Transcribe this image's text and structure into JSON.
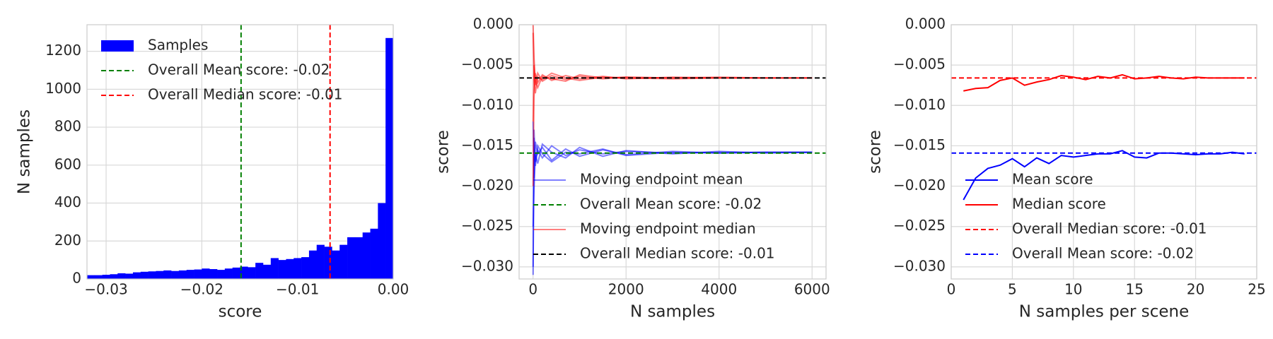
{
  "chart_data": [
    {
      "type": "histogram",
      "xlabel": "score",
      "ylabel": "N samples",
      "name": "Samples",
      "color": "#0000ff",
      "bins": [
        -0.032,
        -0.0312,
        -0.0304,
        -0.0296,
        -0.0288,
        -0.028,
        -0.0272,
        -0.0264,
        -0.0256,
        -0.0248,
        -0.024,
        -0.0232,
        -0.0224,
        -0.0216,
        -0.0208,
        -0.02,
        -0.0192,
        -0.0184,
        -0.0176,
        -0.0168,
        -0.016,
        -0.0152,
        -0.0144,
        -0.0136,
        -0.0128,
        -0.012,
        -0.0112,
        -0.0104,
        -0.0096,
        -0.0088,
        -0.008,
        -0.0072,
        -0.0064,
        -0.0056,
        -0.0048,
        -0.004,
        -0.0032,
        -0.0024,
        -0.0016,
        -0.0008,
        0
      ],
      "counts": [
        20,
        20,
        22,
        25,
        30,
        28,
        35,
        38,
        40,
        42,
        45,
        42,
        45,
        48,
        50,
        55,
        52,
        48,
        55,
        60,
        65,
        62,
        85,
        75,
        110,
        100,
        105,
        110,
        115,
        150,
        180,
        170,
        150,
        180,
        220,
        220,
        245,
        265,
        400,
        1270
      ],
      "vlines": [
        {
          "name": "Overall Mean score: -0.02",
          "color": "#008000",
          "x": -0.0159
        },
        {
          "name": "Overall Median score: -0.01",
          "color": "#ff0000",
          "x": -0.0066
        }
      ],
      "xlim": [
        -0.032,
        0
      ],
      "xticks": [
        {
          "value": -0.03,
          "label": "−0.03"
        },
        {
          "value": -0.02,
          "label": "−0.02"
        },
        {
          "value": -0.01,
          "label": "−0.01"
        },
        {
          "value": 0,
          "label": "0.00"
        }
      ],
      "ylim": [
        0,
        1340
      ],
      "yticks": [
        0,
        200,
        400,
        600,
        800,
        1000,
        1200
      ],
      "grid": true,
      "legend": "upper left"
    },
    {
      "type": "line",
      "xlabel": "N samples",
      "ylabel": "score",
      "x": [
        1,
        20,
        50,
        100,
        200,
        400,
        700,
        1000,
        1500,
        2000,
        3000,
        4000,
        5000,
        6000
      ],
      "series": [
        {
          "name": "Moving endpoint mean",
          "color": "#0000ff",
          "opacity": 0.5,
          "values": [
            [
              -0.031,
              -0.014,
              -0.017,
              -0.0155,
              -0.0165,
              -0.015,
              -0.0162,
              -0.0155,
              -0.016,
              -0.0157,
              -0.0159,
              -0.0158,
              -0.0158,
              -0.0158
            ],
            [
              -0.012,
              -0.019,
              -0.0145,
              -0.016,
              -0.0152,
              -0.0168,
              -0.0154,
              -0.0163,
              -0.0155,
              -0.0161,
              -0.0157,
              -0.0159,
              -0.0158,
              -0.0158
            ],
            [
              -0.025,
              -0.0205,
              -0.016,
              -0.0172,
              -0.0148,
              -0.0158,
              -0.0165,
              -0.0152,
              -0.0163,
              -0.0156,
              -0.016,
              -0.0157,
              -0.0159,
              -0.0158
            ],
            [
              -0.03,
              -0.013,
              -0.0175,
              -0.015,
              -0.016,
              -0.017,
              -0.0158,
              -0.016,
              -0.0154,
              -0.0162,
              -0.0158,
              -0.0159,
              -0.0158,
              -0.0158
            ]
          ]
        },
        {
          "name": "Overall Mean score: -0.02",
          "color": "#008000",
          "style": "dashed",
          "y": -0.0159
        },
        {
          "name": "Moving endpoint median",
          "color": "#ff0000",
          "opacity": 0.5,
          "values": [
            [
              0,
              -0.004,
              -0.0075,
              -0.006,
              -0.007,
              -0.0063,
              -0.0068,
              -0.0064,
              -0.0067,
              -0.0065,
              -0.0066,
              -0.0066,
              -0.0066,
              -0.0066
            ],
            [
              -0.02,
              -0.009,
              -0.006,
              -0.0072,
              -0.0062,
              -0.0069,
              -0.0063,
              -0.0067,
              -0.0064,
              -0.0067,
              -0.0065,
              -0.0066,
              -0.0066,
              -0.0066
            ],
            [
              -0.001,
              -0.0065,
              -0.0085,
              -0.0065,
              -0.0068,
              -0.006,
              -0.0066,
              -0.0069,
              -0.0065,
              -0.0066,
              -0.0067,
              -0.0066,
              -0.0066,
              -0.0066
            ],
            [
              -0.012,
              -0.005,
              -0.007,
              -0.0078,
              -0.0064,
              -0.0067,
              -0.007,
              -0.0062,
              -0.0066,
              -0.0065,
              -0.0066,
              -0.0065,
              -0.0066,
              -0.0066
            ]
          ]
        },
        {
          "name": "Overall Median score: -0.01",
          "color": "#000000",
          "style": "dashed",
          "y": -0.0066
        }
      ],
      "xlim": [
        -300,
        6300
      ],
      "xticks": [
        0,
        2000,
        4000,
        6000
      ],
      "ylim": [
        -0.0315,
        0
      ],
      "yticks": [
        {
          "value": 0,
          "label": "0.000"
        },
        {
          "value": -0.005,
          "label": "−0.005"
        },
        {
          "value": -0.01,
          "label": "−0.010"
        },
        {
          "value": -0.015,
          "label": "−0.015"
        },
        {
          "value": -0.02,
          "label": "−0.020"
        },
        {
          "value": -0.025,
          "label": "−0.025"
        },
        {
          "value": -0.03,
          "label": "−0.030"
        }
      ],
      "grid": true,
      "legend": "lower left"
    },
    {
      "type": "line",
      "xlabel": "N samples per scene",
      "ylabel": "score",
      "x": [
        1,
        2,
        3,
        4,
        5,
        6,
        7,
        8,
        9,
        10,
        11,
        12,
        13,
        14,
        15,
        16,
        17,
        18,
        19,
        20,
        21,
        22,
        23,
        24
      ],
      "series": [
        {
          "name": "Mean score",
          "color": "#0000ff",
          "values": [
            -0.0217,
            -0.019,
            -0.0178,
            -0.0174,
            -0.0166,
            -0.0176,
            -0.0165,
            -0.0172,
            -0.0162,
            -0.0164,
            -0.0162,
            -0.016,
            -0.016,
            -0.0156,
            -0.0164,
            -0.0165,
            -0.0159,
            -0.0159,
            -0.016,
            -0.0161,
            -0.016,
            -0.016,
            -0.0158,
            -0.016
          ]
        },
        {
          "name": "Median score",
          "color": "#ff0000",
          "values": [
            -0.0082,
            -0.0079,
            -0.0078,
            -0.0069,
            -0.0066,
            -0.0075,
            -0.0071,
            -0.0068,
            -0.0063,
            -0.0065,
            -0.0068,
            -0.0064,
            -0.0066,
            -0.0062,
            -0.0067,
            -0.0066,
            -0.0064,
            -0.0066,
            -0.0067,
            -0.0065,
            -0.0066,
            -0.0066,
            -0.0066,
            -0.0066
          ]
        },
        {
          "name": "Overall Median score: -0.01",
          "color": "#ff0000",
          "style": "dashed",
          "y": -0.0066
        },
        {
          "name": "Overall Mean score: -0.02",
          "color": "#0000ff",
          "style": "dashed",
          "y": -0.0159
        }
      ],
      "xlim": [
        0,
        25
      ],
      "xticks": [
        0,
        5,
        10,
        15,
        20,
        25
      ],
      "ylim": [
        -0.0315,
        0
      ],
      "yticks": [
        {
          "value": 0,
          "label": "0.000"
        },
        {
          "value": -0.005,
          "label": "−0.005"
        },
        {
          "value": -0.01,
          "label": "−0.010"
        },
        {
          "value": -0.015,
          "label": "−0.015"
        },
        {
          "value": -0.02,
          "label": "−0.020"
        },
        {
          "value": -0.025,
          "label": "−0.025"
        },
        {
          "value": -0.03,
          "label": "−0.030"
        }
      ],
      "grid": true,
      "legend": "lower left"
    }
  ]
}
